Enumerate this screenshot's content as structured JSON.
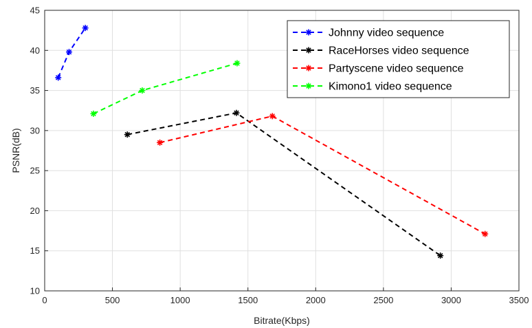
{
  "chart_data": {
    "type": "line",
    "title": "",
    "xlabel": "Bitrate(Kbps)",
    "ylabel": "PSNR(dB)",
    "xlim": [
      0,
      3500
    ],
    "ylim": [
      10,
      45
    ],
    "xticks": [
      0,
      500,
      1000,
      1500,
      2000,
      2500,
      3000,
      3500
    ],
    "yticks": [
      10,
      15,
      20,
      25,
      30,
      35,
      40,
      45
    ],
    "grid": true,
    "legend_position": "top-right",
    "marker": "asterisk",
    "line_style": "dashed",
    "series": [
      {
        "name": "Johnny video sequence",
        "color": "#0000ff",
        "x": [
          100,
          180,
          300
        ],
        "y": [
          36.6,
          39.8,
          42.8
        ]
      },
      {
        "name": "RaceHorses video sequence",
        "color": "#000000",
        "x": [
          610,
          1415,
          2920
        ],
        "y": [
          29.5,
          32.2,
          14.4
        ]
      },
      {
        "name": "Partyscene video sequence",
        "color": "#ff0000",
        "x": [
          850,
          1680,
          3250
        ],
        "y": [
          28.5,
          31.8,
          17.1
        ]
      },
      {
        "name": "Kimono1 video sequence",
        "color": "#00ff00",
        "x": [
          360,
          720,
          1420
        ],
        "y": [
          32.1,
          35.0,
          38.4
        ]
      }
    ]
  }
}
